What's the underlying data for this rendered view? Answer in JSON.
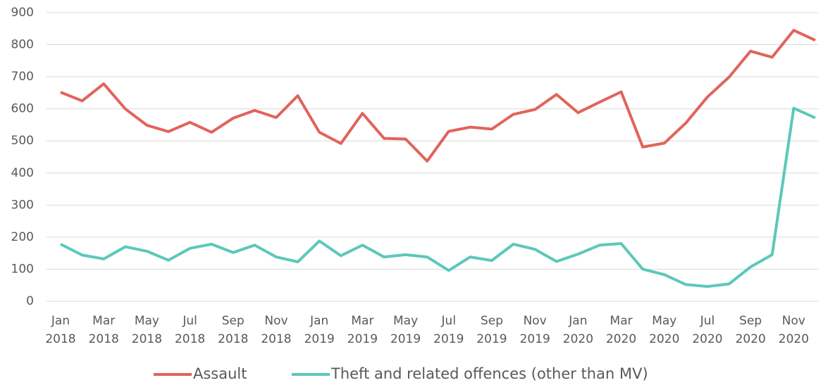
{
  "chart_data": {
    "type": "line",
    "categories": [
      "Jan 2018",
      null,
      "Mar 2018",
      null,
      "May 2018",
      null,
      "Jul 2018",
      null,
      "Sep 2018",
      null,
      "Nov 2018",
      null,
      "Jan 2019",
      null,
      "Mar 2019",
      null,
      "May 2019",
      null,
      "Jul 2019",
      null,
      "Sep 2019",
      null,
      "Nov 2019",
      null,
      "Jan 2020",
      null,
      "Mar 2020",
      null,
      "May 2020",
      null,
      "Jul 2020",
      null,
      "Sep 2020",
      null,
      "Nov 2020",
      null
    ],
    "series": [
      {
        "name": "Assault",
        "color": "#e0645c",
        "values": [
          652,
          625,
          678,
          600,
          549,
          529,
          558,
          527,
          571,
          595,
          573,
          641,
          527,
          492,
          586,
          508,
          506,
          437,
          530,
          543,
          537,
          583,
          598,
          645,
          588,
          621,
          653,
          481,
          493,
          556,
          637,
          699,
          780,
          761,
          845,
          814
        ]
      },
      {
        "name": "Theft and related offences (other than MV)",
        "color": "#5cc8bb",
        "values": [
          178,
          144,
          132,
          170,
          156,
          128,
          165,
          178,
          152,
          175,
          138,
          123,
          188,
          142,
          175,
          138,
          145,
          138,
          96,
          138,
          127,
          178,
          162,
          124,
          147,
          175,
          180,
          100,
          83,
          52,
          46,
          54,
          107,
          145,
          602,
          572
        ]
      }
    ],
    "ylim": [
      0,
      900
    ],
    "yticks": [
      0,
      100,
      200,
      300,
      400,
      500,
      600,
      700,
      800,
      900
    ],
    "grid": true,
    "legend": "bottom"
  }
}
